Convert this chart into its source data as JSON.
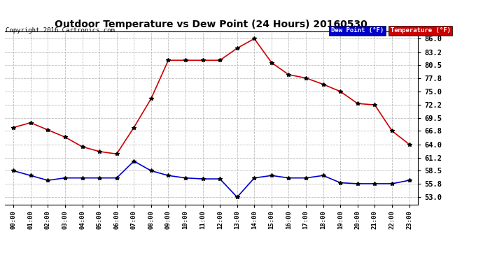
{
  "title": "Outdoor Temperature vs Dew Point (24 Hours) 20160530",
  "copyright": "Copyright 2016 Cartronics.com",
  "x_labels": [
    "00:00",
    "01:00",
    "02:00",
    "03:00",
    "04:00",
    "05:00",
    "06:00",
    "07:00",
    "08:00",
    "09:00",
    "10:00",
    "11:00",
    "12:00",
    "13:00",
    "14:00",
    "15:00",
    "16:00",
    "17:00",
    "18:00",
    "19:00",
    "20:00",
    "21:00",
    "22:00",
    "23:00"
  ],
  "temperature": [
    67.5,
    68.5,
    67.0,
    65.5,
    63.5,
    62.5,
    62.0,
    67.5,
    73.5,
    81.5,
    81.5,
    81.5,
    81.5,
    84.0,
    86.0,
    81.0,
    78.5,
    77.8,
    76.5,
    75.0,
    72.5,
    72.2,
    66.8,
    64.0
  ],
  "dew_point": [
    58.5,
    57.5,
    56.5,
    57.0,
    57.0,
    57.0,
    57.0,
    60.5,
    58.5,
    57.5,
    57.0,
    56.8,
    56.8,
    53.0,
    57.0,
    57.5,
    57.0,
    57.0,
    57.5,
    56.0,
    55.8,
    55.8,
    55.8,
    56.5
  ],
  "temp_color": "#cc0000",
  "dew_color": "#0000cc",
  "y_ticks": [
    53.0,
    55.8,
    58.5,
    61.2,
    64.0,
    66.8,
    69.5,
    72.2,
    75.0,
    77.8,
    80.5,
    83.2,
    86.0
  ],
  "ylim": [
    51.5,
    87.5
  ],
  "background_color": "#ffffff",
  "grid_color": "#bbbbbb",
  "marker": "*",
  "marker_color": "#000000",
  "marker_size": 4,
  "linewidth": 1.2
}
